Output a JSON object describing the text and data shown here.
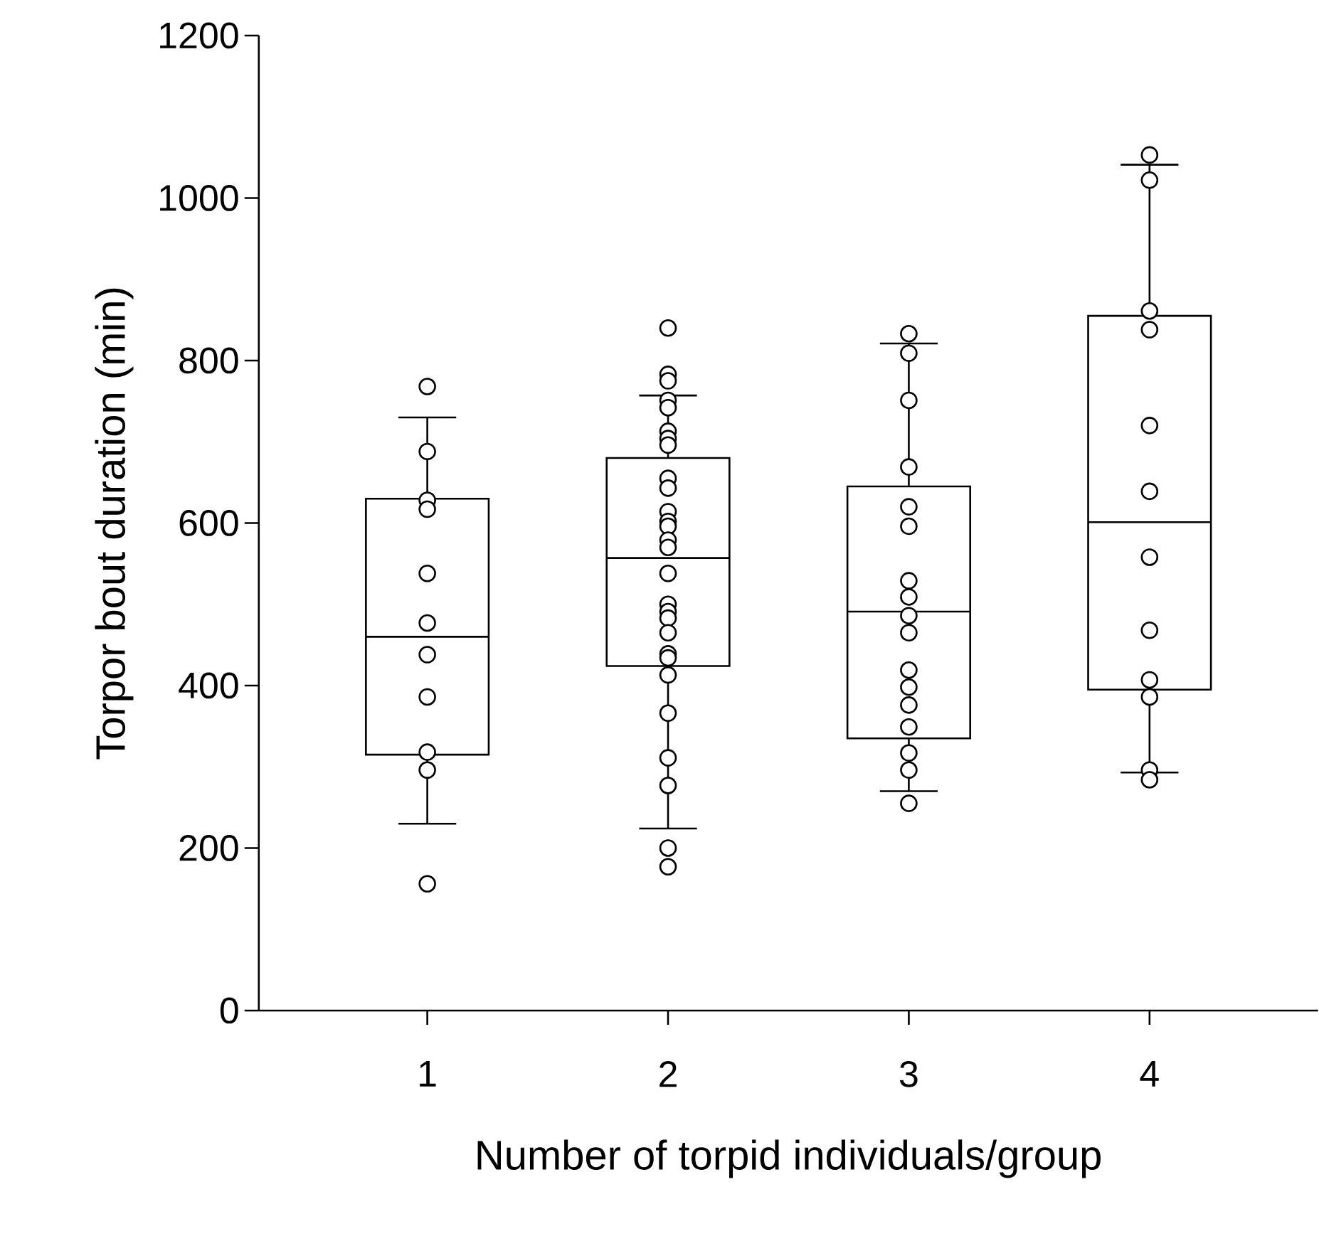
{
  "chart_data": {
    "type": "box",
    "xlabel": "Number of torpid individuals/group",
    "ylabel": "Torpor bout duration (min)",
    "categories": [
      "1",
      "2",
      "3",
      "4"
    ],
    "ylim": [
      0,
      1200
    ],
    "yticks": [
      0,
      200,
      400,
      600,
      800,
      1000,
      1200
    ],
    "boxes": [
      {
        "low": 230,
        "q1": 315,
        "median": 460,
        "q3": 630,
        "high": 730
      },
      {
        "low": 224,
        "q1": 424,
        "median": 557,
        "q3": 680,
        "high": 757
      },
      {
        "low": 270,
        "q1": 335,
        "median": 491,
        "q3": 645,
        "high": 821
      },
      {
        "low": 293,
        "q1": 395,
        "median": 601,
        "q3": 855,
        "high": 1041
      }
    ],
    "marker": "circle",
    "series": [
      {
        "type": "scatter",
        "x": [
          "1",
          "1",
          "1",
          "1",
          "1",
          "1",
          "1",
          "1",
          "1",
          "1",
          "1",
          "2",
          "2",
          "2",
          "2",
          "2",
          "2",
          "2",
          "2",
          "2",
          "2",
          "2",
          "2",
          "2",
          "2",
          "2",
          "2",
          "2",
          "2",
          "2",
          "2",
          "2",
          "2",
          "2",
          "2",
          "2",
          "2",
          "2",
          "2",
          "3",
          "3",
          "3",
          "3",
          "3",
          "3",
          "3",
          "3",
          "3",
          "3",
          "3",
          "3",
          "3",
          "3",
          "3",
          "3",
          "3",
          "4",
          "4",
          "4",
          "4",
          "4",
          "4",
          "4",
          "4",
          "4",
          "4",
          "4",
          "4"
        ],
        "values": [
          768,
          688,
          628,
          617,
          538,
          477,
          438,
          386,
          318,
          296,
          156,
          840,
          783,
          775,
          751,
          742,
          713,
          704,
          696,
          655,
          643,
          614,
          602,
          596,
          579,
          570,
          538,
          500,
          491,
          483,
          465,
          439,
          434,
          413,
          366,
          311,
          277,
          200,
          177,
          833,
          809,
          751,
          669,
          620,
          596,
          529,
          509,
          486,
          465,
          419,
          398,
          376,
          349,
          317,
          296,
          255,
          1053,
          1022,
          861,
          838,
          720,
          639,
          558,
          468,
          407,
          386,
          296,
          284
        ]
      }
    ]
  }
}
